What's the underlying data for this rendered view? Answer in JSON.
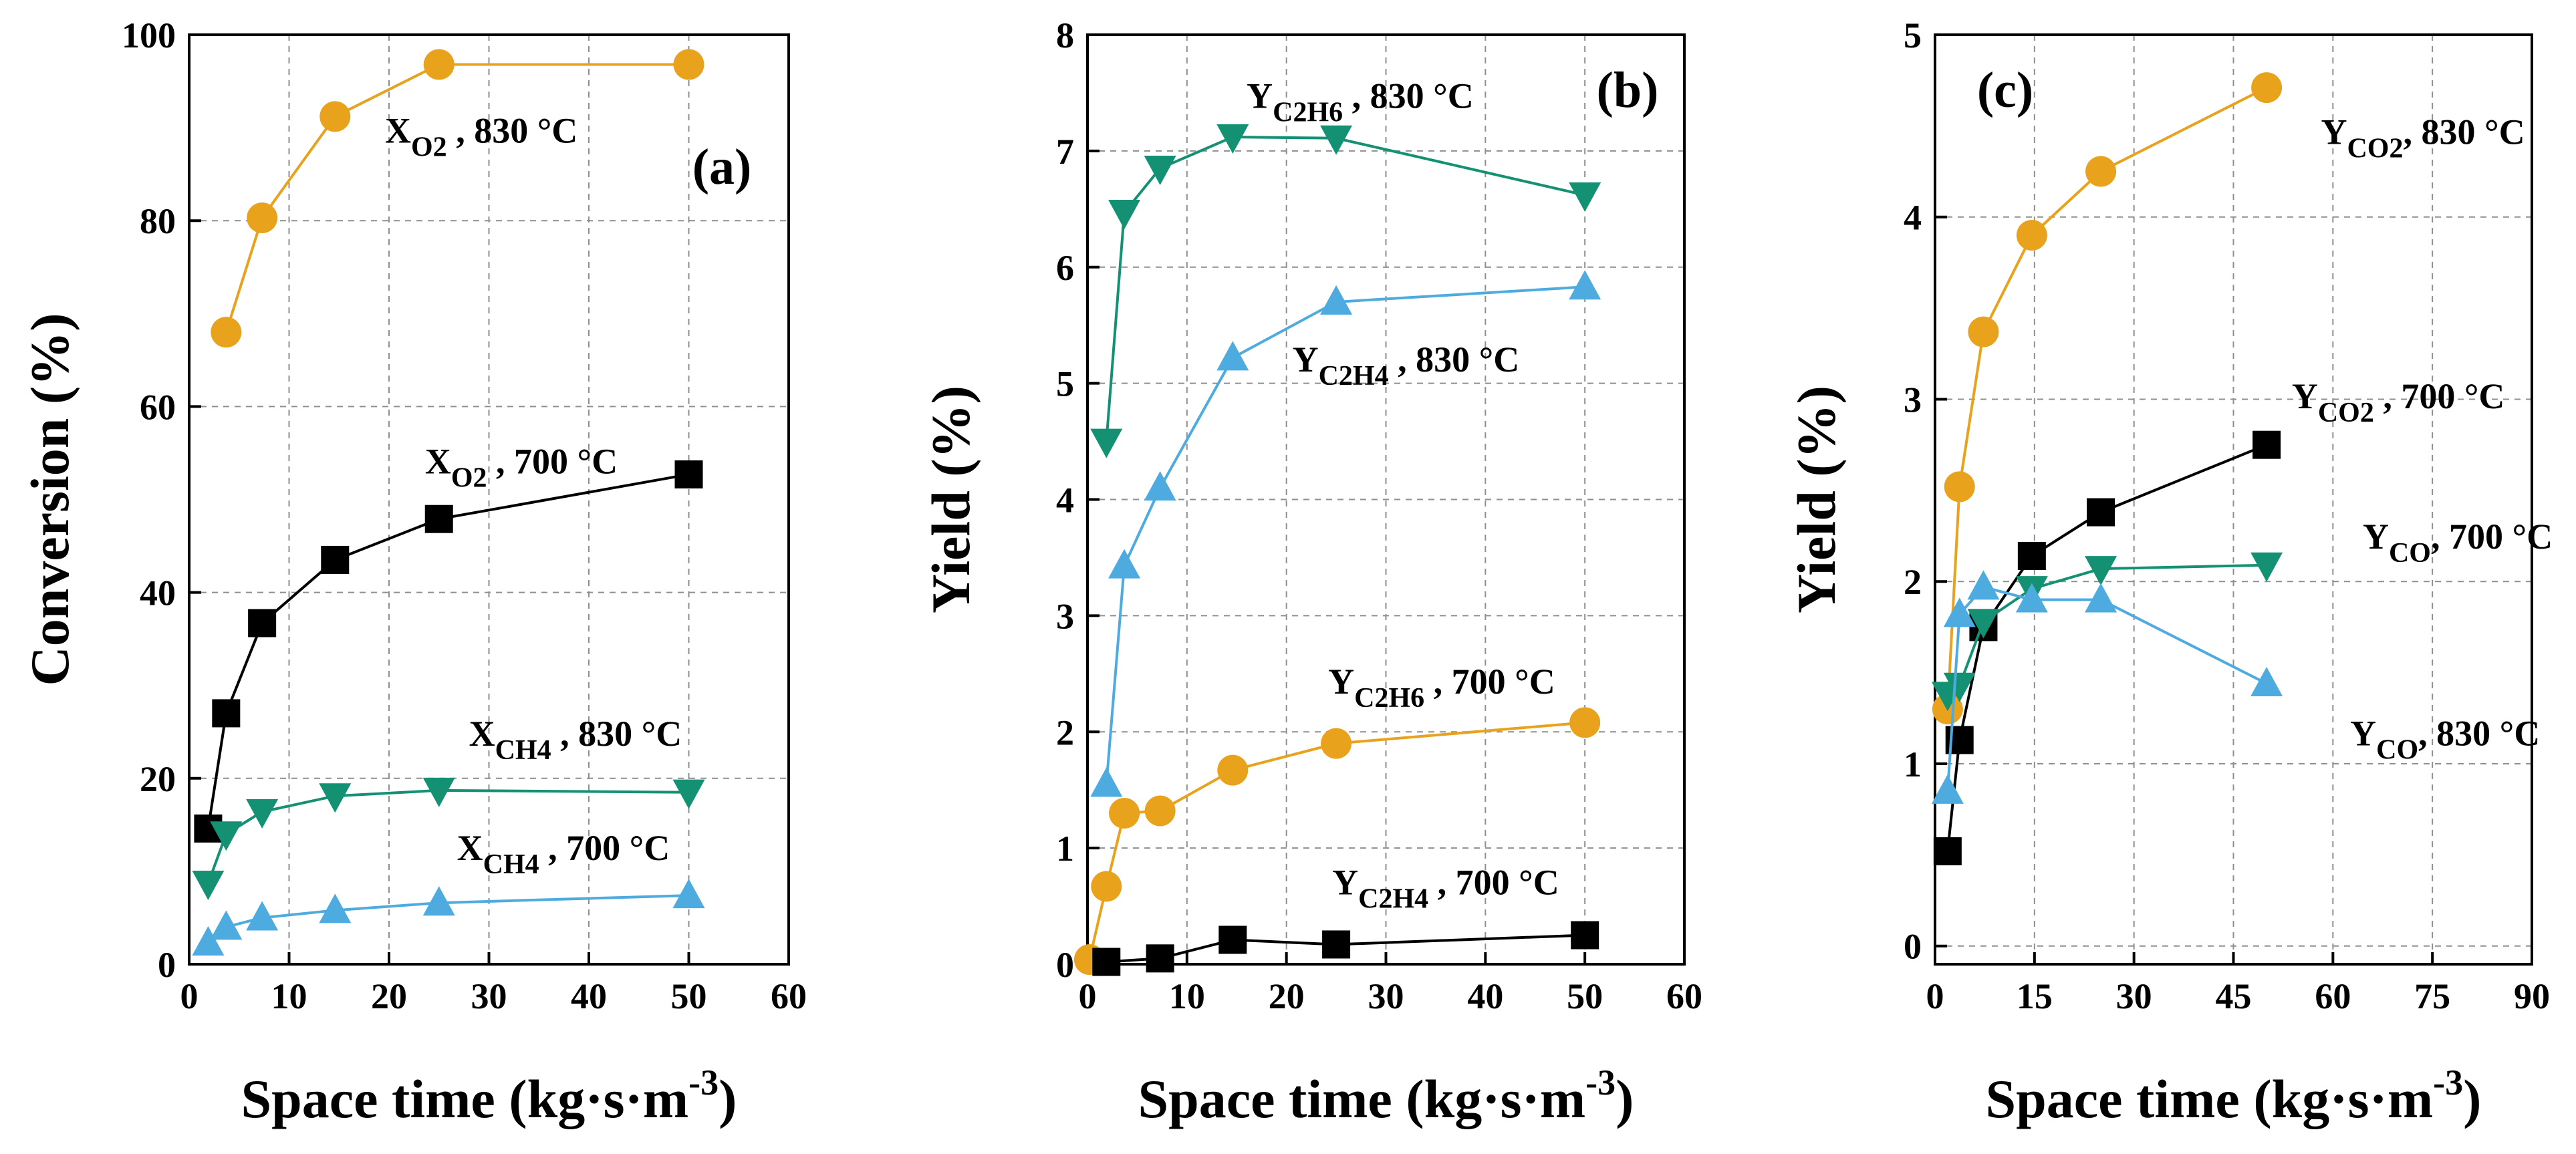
{
  "colors": {
    "orange": "#e8a21b",
    "green": "#149172",
    "blue": "#4dabe0",
    "black": "#000000"
  },
  "chart_data": [
    {
      "type": "line",
      "panel_label": "(a)",
      "xlabel": "Space time (kg·s·m",
      "xlabel_sup": "-3",
      "xlabel_end": ")",
      "ylabel": "Conversion (%)",
      "xlim": [
        0,
        60
      ],
      "ylim": [
        0,
        100
      ],
      "xticks": [
        "0",
        "10",
        "20",
        "30",
        "40",
        "50",
        "60"
      ],
      "yticks": [
        "0",
        "20",
        "40",
        "60",
        "80",
        "100"
      ],
      "xtick_values": [
        0,
        10,
        20,
        30,
        40,
        50,
        60
      ],
      "ytick_values": [
        0,
        20,
        40,
        60,
        80,
        100
      ],
      "series": [
        {
          "name": "XO2 830",
          "color": "orange",
          "marker": "circle",
          "x": [
            3.7,
            7.3,
            14.6,
            25,
            50
          ],
          "y": [
            68,
            80.3,
            91.2,
            96.8,
            96.8
          ]
        },
        {
          "name": "XO2 700",
          "color": "black",
          "marker": "square",
          "x": [
            1.9,
            3.7,
            7.3,
            14.6,
            25,
            50
          ],
          "y": [
            14.6,
            27,
            36.7,
            43.5,
            47.9,
            52.7
          ]
        },
        {
          "name": "XCH4 830",
          "color": "green",
          "marker": "triangle-down",
          "x": [
            1.9,
            3.7,
            7.3,
            14.6,
            25,
            50
          ],
          "y": [
            8.7,
            14,
            16.4,
            18.1,
            18.7,
            18.5
          ]
        },
        {
          "name": "XCH4 700",
          "color": "blue",
          "marker": "triangle-up",
          "x": [
            1.9,
            3.7,
            7.3,
            14.6,
            25,
            50
          ],
          "y": [
            2.3,
            4,
            5,
            5.8,
            6.6,
            7.4
          ]
        }
      ],
      "annotations": [
        {
          "main": "X",
          "sub": "O2",
          "tail": " , 830 °C",
          "x": 19.6,
          "y": 88.4
        },
        {
          "main": "X",
          "sub": "O2",
          "tail": " , 700 °C",
          "x": 23.6,
          "y": 52.8
        },
        {
          "main": "X",
          "sub": "CH4",
          "tail": " , 830 °C",
          "x": 28,
          "y": 23.5
        },
        {
          "main": "X",
          "sub": "CH4",
          "tail": " , 700 °C",
          "x": 26.8,
          "y": 11.2
        }
      ]
    },
    {
      "type": "line",
      "panel_label": "(b)",
      "xlabel": "Space time (kg·s·m",
      "xlabel_sup": "-3",
      "xlabel_end": ")",
      "ylabel": "Yield (%)",
      "xlim": [
        0,
        60
      ],
      "ylim": [
        0,
        8
      ],
      "xticks": [
        "0",
        "10",
        "20",
        "30",
        "40",
        "50",
        "60"
      ],
      "yticks": [
        "0",
        "1",
        "2",
        "3",
        "4",
        "5",
        "6",
        "7",
        "8"
      ],
      "xtick_values": [
        0,
        10,
        20,
        30,
        40,
        50,
        60
      ],
      "ytick_values": [
        0,
        1,
        2,
        3,
        4,
        5,
        6,
        7,
        8
      ],
      "series": [
        {
          "name": "YC2H6 830",
          "color": "green",
          "marker": "triangle-down",
          "x": [
            1.9,
            3.7,
            7.3,
            14.6,
            25,
            50
          ],
          "y": [
            4.5,
            6.47,
            6.85,
            7.12,
            7.11,
            6.62
          ]
        },
        {
          "name": "YC2H4 830",
          "color": "blue",
          "marker": "triangle-up",
          "x": [
            1.9,
            3.7,
            7.3,
            14.6,
            25,
            50
          ],
          "y": [
            1.55,
            3.43,
            4.1,
            5.22,
            5.7,
            5.83
          ]
        },
        {
          "name": "YC2H6 700",
          "color": "orange",
          "marker": "circle",
          "x": [
            0.2,
            1.9,
            3.7,
            7.3,
            14.6,
            25,
            50
          ],
          "y": [
            0.04,
            0.67,
            1.3,
            1.32,
            1.67,
            1.9,
            2.08
          ]
        },
        {
          "name": "YC2H4 700",
          "color": "black",
          "marker": "square",
          "x": [
            1.9,
            7.3,
            14.6,
            25,
            50
          ],
          "y": [
            0.02,
            0.05,
            0.21,
            0.17,
            0.25
          ]
        }
      ],
      "annotations": [
        {
          "main": "Y",
          "sub": "C2H6",
          "tail": " , 830 °C",
          "x": 16,
          "y": 7.37
        },
        {
          "main": "Y",
          "sub": "C2H4",
          "tail": " , 830 °C",
          "x": 20.6,
          "y": 5.1
        },
        {
          "main": "Y",
          "sub": "C2H6",
          "tail": " , 700 °C",
          "x": 24.2,
          "y": 2.33
        },
        {
          "main": "Y",
          "sub": "C2H4",
          "tail": " , 700 °C",
          "x": 24.6,
          "y": 0.6
        }
      ]
    },
    {
      "type": "line",
      "panel_label": "(c)",
      "xlabel": "Space time (kg·s·m",
      "xlabel_sup": "-3",
      "xlabel_end": ")",
      "ylabel": "Yield (%)",
      "xlim": [
        0,
        90
      ],
      "ylim": [
        -0.1,
        5
      ],
      "xticks": [
        "0",
        "15",
        "30",
        "45",
        "60",
        "75",
        "90"
      ],
      "yticks": [
        "0",
        "1",
        "2",
        "3",
        "4",
        "5"
      ],
      "xtick_values": [
        0,
        15,
        30,
        45,
        60,
        75,
        90
      ],
      "ytick_values": [
        0,
        1,
        2,
        3,
        4,
        5
      ],
      "series": [
        {
          "name": "YCO2 830",
          "color": "orange",
          "marker": "circle",
          "x": [
            1.9,
            3.7,
            7.3,
            14.6,
            25,
            50
          ],
          "y": [
            1.3,
            2.52,
            3.37,
            3.9,
            4.25,
            4.71
          ]
        },
        {
          "name": "YCO2 700",
          "color": "black",
          "marker": "square",
          "x": [
            1.9,
            3.7,
            7.3,
            14.6,
            25,
            50
          ],
          "y": [
            0.52,
            1.13,
            1.75,
            2.14,
            2.38,
            2.75
          ]
        },
        {
          "name": "YCO 700",
          "color": "green",
          "marker": "triangle-down",
          "x": [
            1.9,
            3.7,
            7.3,
            14.6,
            25,
            50
          ],
          "y": [
            1.38,
            1.43,
            1.78,
            1.96,
            2.07,
            2.09
          ]
        },
        {
          "name": "YCO 830",
          "color": "blue",
          "marker": "triangle-up",
          "x": [
            1.9,
            3.7,
            7.3,
            14.6,
            25,
            50
          ],
          "y": [
            0.85,
            1.82,
            1.97,
            1.9,
            1.9,
            1.44
          ]
        }
      ],
      "annotations": [
        {
          "main": "Y",
          "sub": "CO2",
          "tail": ", 830 °C",
          "x": 58.2,
          "y": 4.4
        },
        {
          "main": "Y",
          "sub": "CO2",
          "tail": " , 700 °C",
          "x": 53.8,
          "y": 2.95
        },
        {
          "main": "Y",
          "sub": "CO",
          "tail": ", 700 °C",
          "x": 64.5,
          "y": 2.18
        },
        {
          "main": "Y",
          "sub": "CO",
          "tail": ", 830 °C",
          "x": 62.6,
          "y": 1.1
        }
      ]
    }
  ]
}
